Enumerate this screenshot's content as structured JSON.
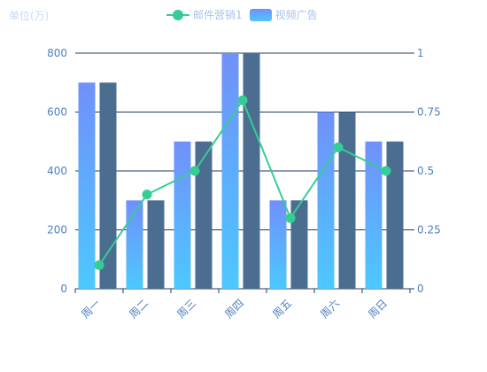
{
  "chart_data": {
    "type": "bar",
    "unit_label": "单位(万)",
    "categories": [
      "周一",
      "周二",
      "周三",
      "周四",
      "周五",
      "周六",
      "周日"
    ],
    "series": [
      {
        "name": "视频广告",
        "type": "bar",
        "axis": "left",
        "values": [
          700,
          300,
          500,
          800,
          300,
          600,
          500
        ],
        "color_top": "#7090fa",
        "color_bottom": "#4dc8ff"
      },
      {
        "type": "bar",
        "axis": "left",
        "values": [
          700,
          300,
          500,
          800,
          300,
          600,
          500
        ],
        "color": "#4b6d8f"
      },
      {
        "name": "邮件营销1",
        "type": "line",
        "axis": "right",
        "values": [
          0.1,
          0.4,
          0.5,
          0.8,
          0.3,
          0.6,
          0.5
        ],
        "color": "#36cd95"
      }
    ],
    "y_left": {
      "min": 0,
      "max": 800,
      "ticks": [
        "0",
        "200",
        "400",
        "600",
        "800"
      ]
    },
    "y_right": {
      "min": 0,
      "max": 1,
      "ticks": [
        "0",
        "0.25",
        "0.5",
        "0.75",
        "1"
      ]
    },
    "grid": true,
    "legend_position": "top-center",
    "colors": {
      "axis_text": "#4e7fbf",
      "grid": "#1f3b5e",
      "legend_text": "#a7c3ea"
    }
  }
}
